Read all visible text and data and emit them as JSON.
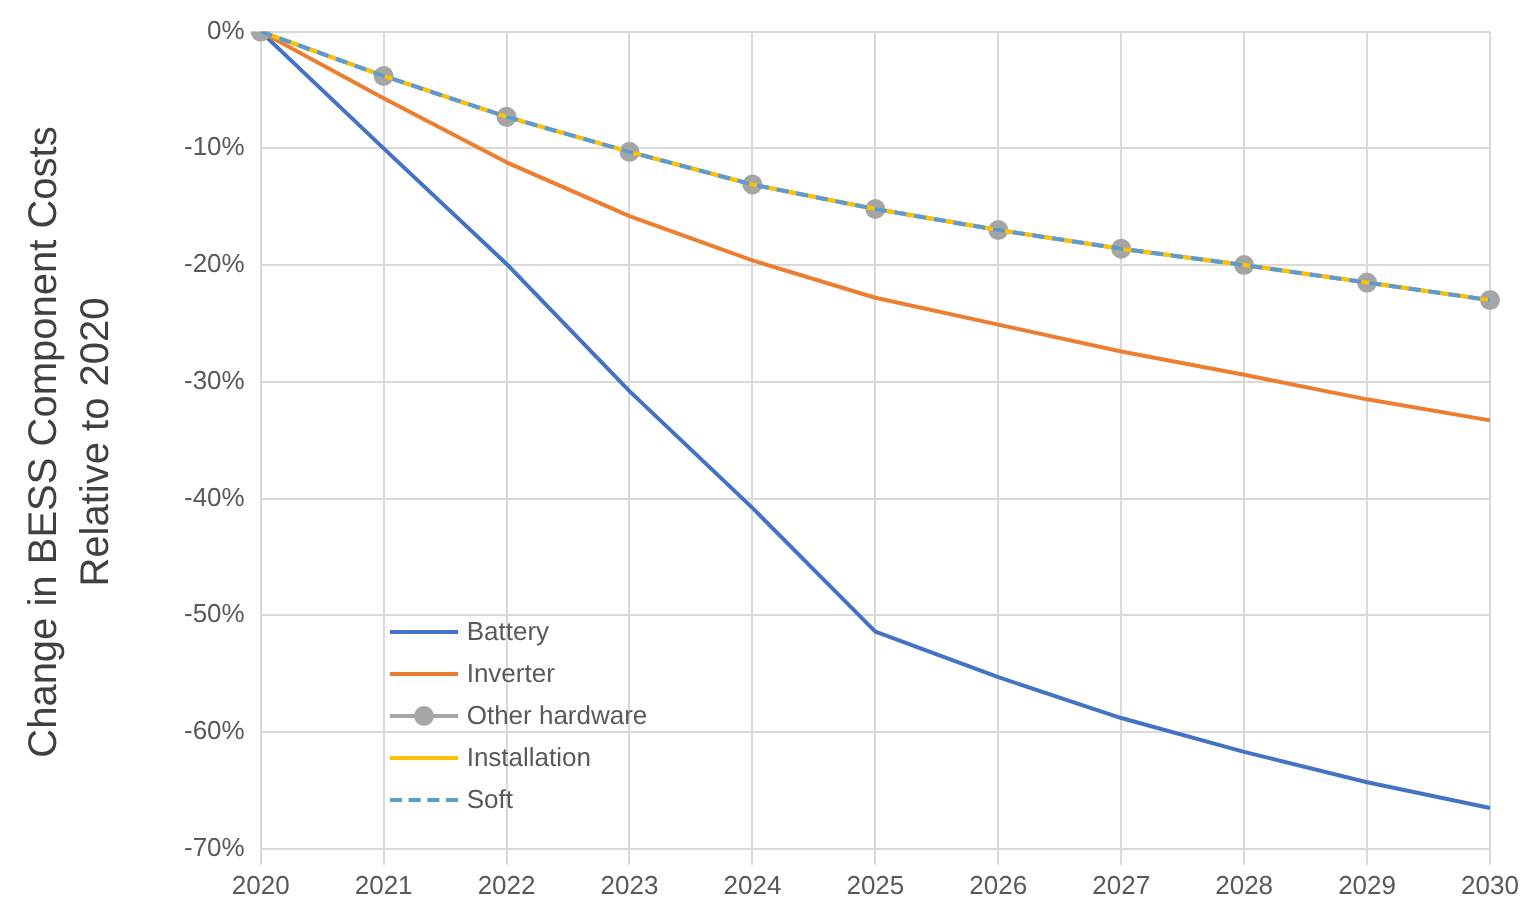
{
  "chart_data": {
    "type": "line",
    "ylabel": "Change in BESS Component Costs Relative to 2020",
    "categories": [
      "2020",
      "2021",
      "2022",
      "2023",
      "2024",
      "2025",
      "2026",
      "2027",
      "2028",
      "2029",
      "2030"
    ],
    "series": [
      {
        "name": "Battery",
        "color": "#4472c4",
        "values": [
          0,
          -10.0,
          -19.9,
          -30.8,
          -40.8,
          -51.4,
          -55.3,
          -58.8,
          -61.7,
          -64.3,
          -66.5
        ]
      },
      {
        "name": "Inverter",
        "color": "#ed7d31",
        "values": [
          0,
          -5.7,
          -11.2,
          -15.8,
          -19.6,
          -22.8,
          -25.1,
          -27.4,
          -29.4,
          -31.5,
          -33.3
        ]
      },
      {
        "name": "Other hardware",
        "color": "#a5a5a5",
        "marker": "circle",
        "values": [
          0,
          -3.8,
          -7.3,
          -10.3,
          -13.1,
          -15.2,
          -17.0,
          -18.6,
          -20.0,
          -21.5,
          -23.0
        ]
      },
      {
        "name": "Installation",
        "color": "#ffc000",
        "values": [
          0,
          -3.8,
          -7.3,
          -10.3,
          -13.1,
          -15.2,
          -17.0,
          -18.6,
          -20.0,
          -21.5,
          -23.0
        ]
      },
      {
        "name": "Soft",
        "color": "#5b9bd5",
        "line_style": "dashed",
        "values": [
          0,
          -3.8,
          -7.3,
          -10.3,
          -13.1,
          -15.2,
          -17.0,
          -18.6,
          -20.0,
          -21.5,
          -23.0
        ]
      }
    ],
    "ylim": [
      -70,
      0
    ],
    "yticks": [
      {
        "value": 0,
        "label": "0%"
      },
      {
        "value": -10,
        "label": "-10%"
      },
      {
        "value": -20,
        "label": "-20%"
      },
      {
        "value": -30,
        "label": "-30%"
      },
      {
        "value": -40,
        "label": "-40%"
      },
      {
        "value": -50,
        "label": "-50%"
      },
      {
        "value": -60,
        "label": "-60%"
      },
      {
        "value": -70,
        "label": "-70%"
      }
    ],
    "grid": true,
    "legend": "bottom left",
    "marker": "none",
    "line_style": "solid"
  }
}
